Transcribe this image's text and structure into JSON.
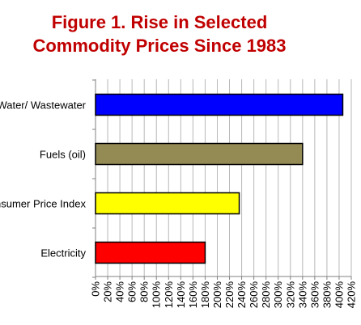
{
  "chart_data": {
    "type": "bar",
    "orientation": "horizontal",
    "title": "Figure 1. Rise in Selected Commodity Prices Since 1983",
    "title_lines": [
      "Figure 1. Rise in Selected",
      "Commodity Prices Since 1983"
    ],
    "categories": [
      "Water/ Wastewater",
      "Fuels (oil)",
      "Consumer Price Index",
      "Electricity"
    ],
    "values": [
      406,
      340,
      236,
      180
    ],
    "bar_colors": [
      "#0000ff",
      "#948a54",
      "#ffff00",
      "#ff0000"
    ],
    "xlim": [
      0,
      420
    ],
    "x_tick_step": 20,
    "x_tick_format": "percent",
    "gridlines": "vertical",
    "legend": "none"
  },
  "colors": {
    "title": "#c00000",
    "grid": "#b8b8b8",
    "bar_outline": "#000000"
  }
}
